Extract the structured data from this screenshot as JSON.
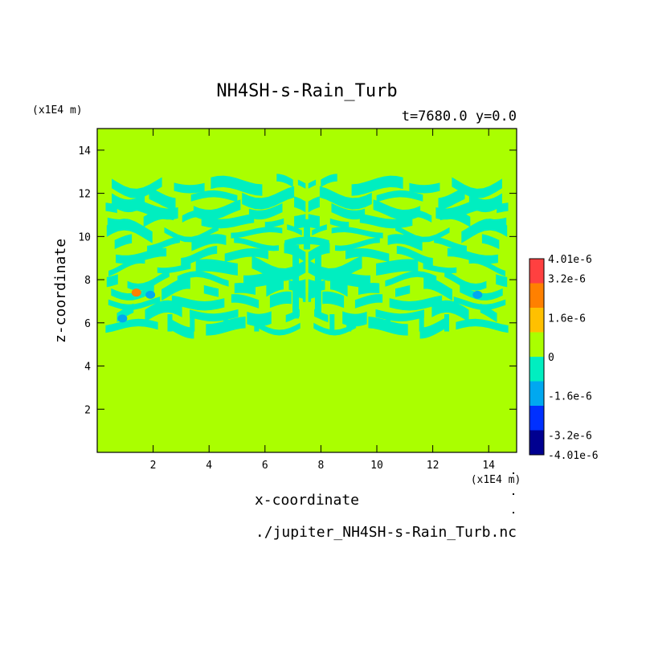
{
  "chart_data": {
    "type": "heatmap",
    "title": "NH4SH-s-Rain_Turb",
    "subtitle": "t=7680.0 y=0.0",
    "xlabel": "x-coordinate",
    "ylabel": "z-coordinate",
    "x_unit": "(x1E4 m)",
    "z_unit": "(x1E4 m)",
    "xlim": [
      0,
      15
    ],
    "ylim": [
      0,
      15
    ],
    "x_ticks": [
      2,
      4,
      6,
      8,
      10,
      12,
      14
    ],
    "y_ticks": [
      2,
      4,
      6,
      8,
      10,
      12,
      14
    ],
    "source_file": "./jupiter_NH4SH-s-Rain_Turb.nc",
    "colorbar": {
      "labels": [
        "4.01e-6",
        "3.2e-6",
        "1.6e-6",
        "0",
        "-1.6e-6",
        "-3.2e-6",
        "-4.01e-6"
      ],
      "levels": [
        4.01e-06,
        3.2e-06,
        1.6e-06,
        0,
        -1.6e-06,
        -3.2e-06,
        -4.01e-06
      ],
      "colors": [
        "#ff4040",
        "#ff8000",
        "#ffc000",
        "#aaff00",
        "#00eec0",
        "#00a8f0",
        "#0030ff",
        "#000090"
      ]
    },
    "field": {
      "background_value": 0,
      "background_color": "#aaff00",
      "negative_band_color": "#00eec0",
      "banded_region_z": [
        5.5,
        12.5
      ],
      "symmetry": "mirror about x=7.5",
      "extrema": [
        {
          "label": "positive max",
          "x": 1.4,
          "z": 7.4,
          "color": "#ff8000"
        },
        {
          "label": "negative min",
          "x": 1.9,
          "z": 7.3,
          "color": "#00a8f0"
        },
        {
          "label": "negative min",
          "x": 13.6,
          "z": 7.3,
          "color": "#00a8f0"
        },
        {
          "label": "negative min",
          "x": 0.9,
          "z": 6.2,
          "color": "#00a8f0"
        }
      ]
    }
  }
}
